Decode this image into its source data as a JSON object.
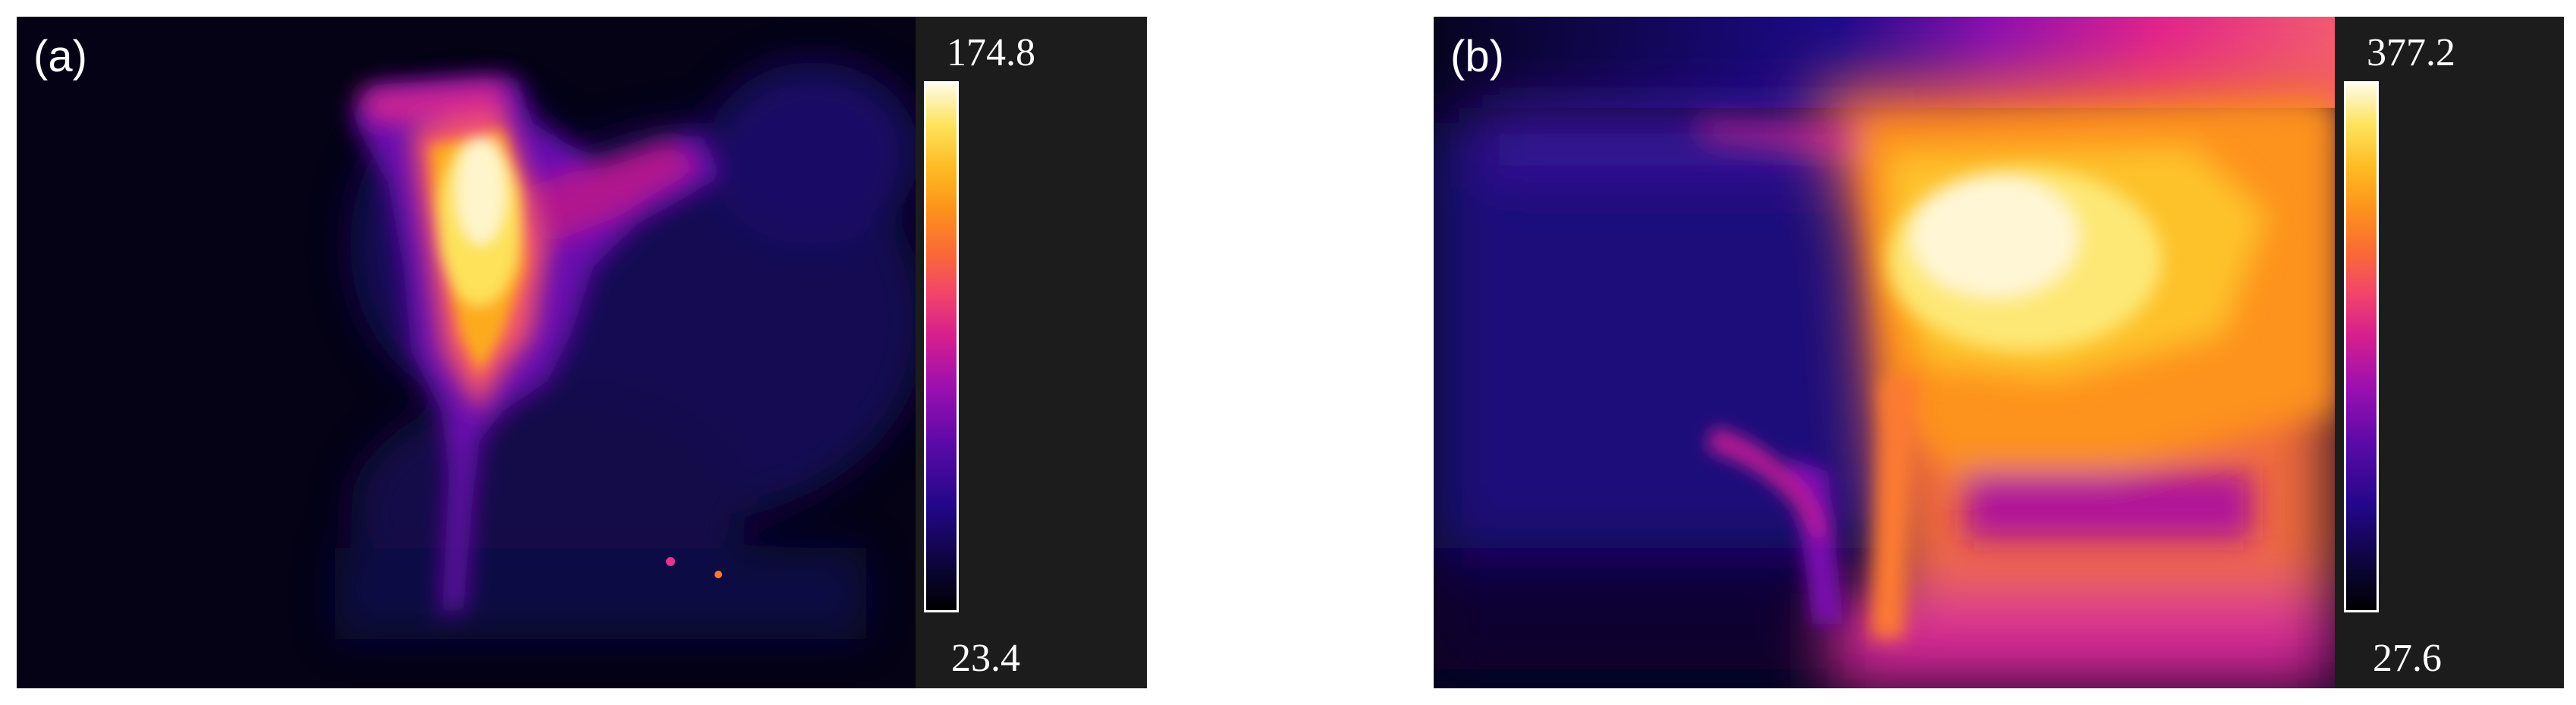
{
  "panels": [
    {
      "label": "(a)",
      "colorbar": {
        "max": "174.8",
        "min": "23.4"
      }
    },
    {
      "label": "(b)",
      "colorbar": {
        "max": "377.2",
        "min": "27.6"
      }
    }
  ],
  "colormap": [
    "#000000",
    "#23078a",
    "#9a0fb0",
    "#f2446a",
    "#fd921b",
    "#fde25a",
    "#fffbe6"
  ]
}
